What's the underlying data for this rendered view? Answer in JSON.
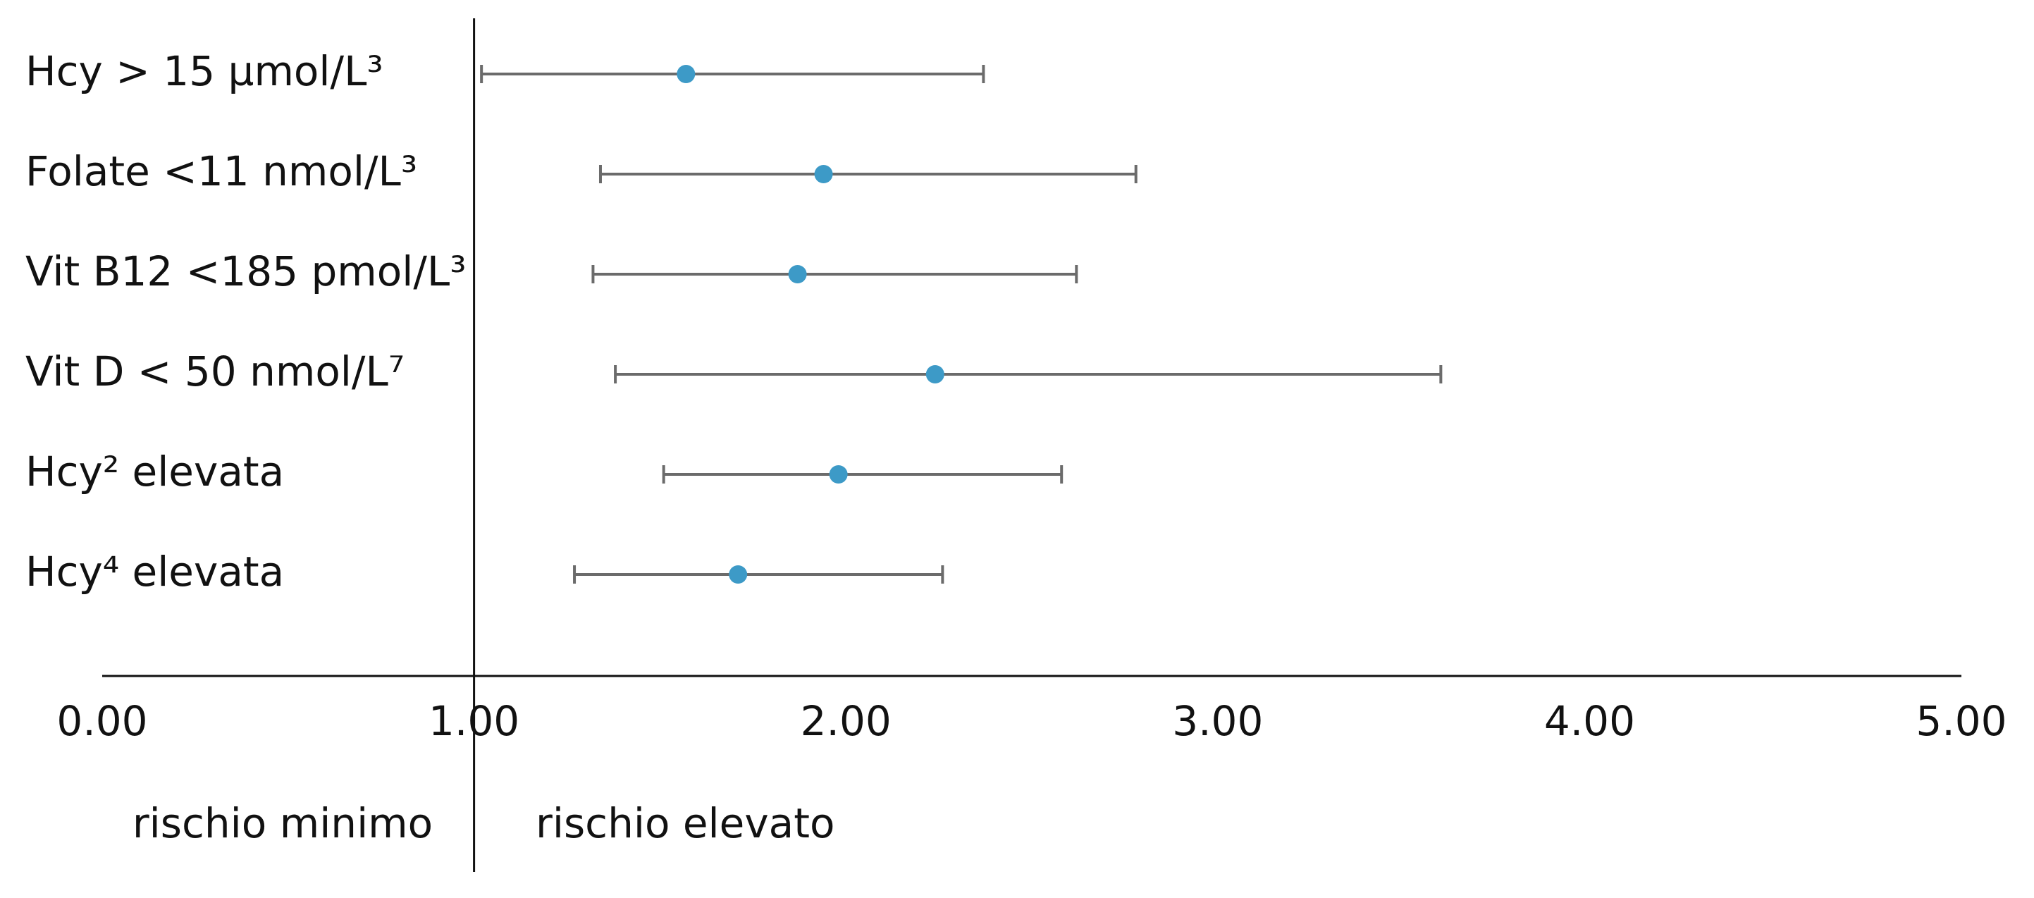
{
  "chart_data": {
    "type": "forest",
    "categories": [
      "Hcy > 15 µmol/L³",
      "Folate <11 nmol/L³",
      "Vit B12 <185 pmol/L³",
      "Vit D < 50 nmol/L⁷",
      "Hcy² elevata",
      "Hcy⁴ elevata"
    ],
    "values": [
      1.57,
      1.94,
      1.87,
      2.24,
      1.98,
      1.71
    ],
    "lower": [
      1.02,
      1.34,
      1.32,
      1.38,
      1.51,
      1.27
    ],
    "upper": [
      2.37,
      2.78,
      2.62,
      3.6,
      2.58,
      2.26
    ],
    "color": "#3d9ac7",
    "bar_color": "#6b6b6b",
    "reference_x": 1,
    "xlim": [
      0,
      5
    ],
    "xticks": [
      {
        "value": 0,
        "label": "0.00"
      },
      {
        "value": 1,
        "label": "1.00"
      },
      {
        "value": 2,
        "label": "2.00"
      },
      {
        "value": 3,
        "label": "3.00"
      },
      {
        "value": 4,
        "label": "4.00"
      },
      {
        "value": 5,
        "label": "5.00"
      }
    ],
    "annotations": [
      "rischio minimo",
      "rischio elevato"
    ]
  }
}
